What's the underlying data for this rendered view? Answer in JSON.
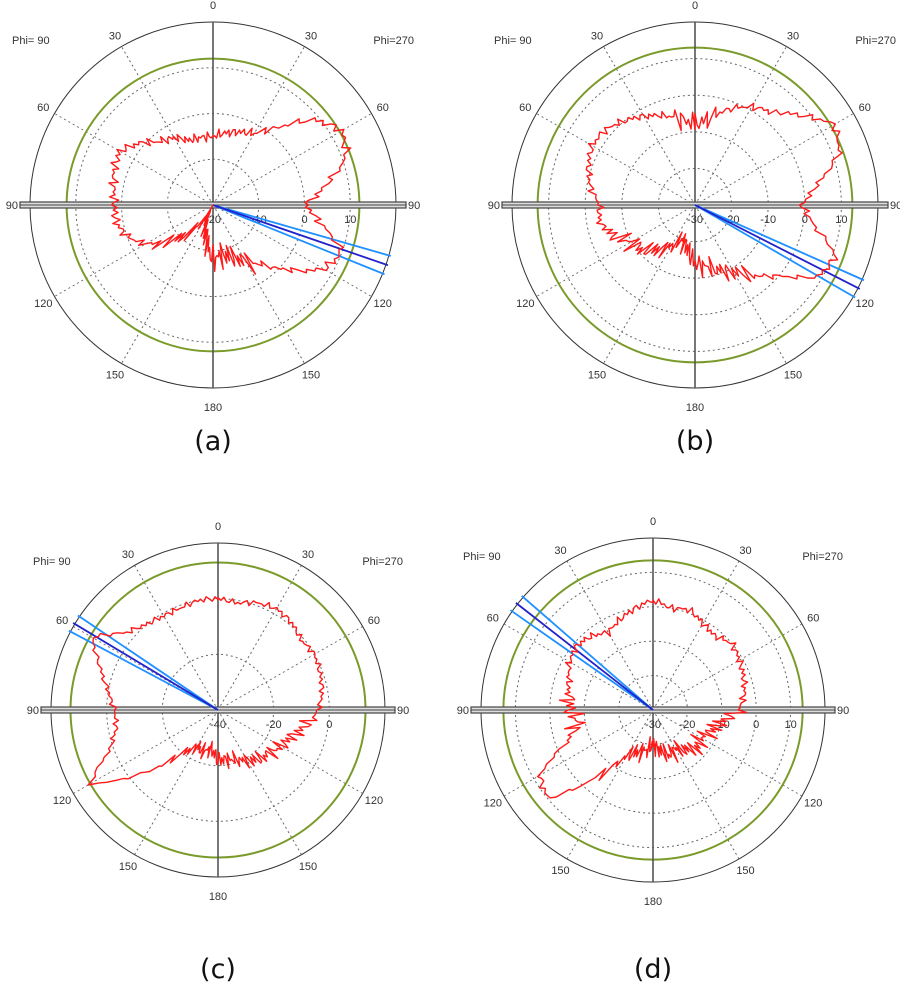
{
  "chart_data": [
    {
      "type": "polar",
      "caption": "(a)",
      "phi_left_label": "Phi= 90",
      "phi_right_label": "Phi=270",
      "theta_labels": [
        "0",
        "30",
        "60",
        "90",
        "120",
        "150",
        "180",
        "150",
        "120",
        "90",
        "60",
        "30"
      ],
      "radial_min": -20,
      "radial_max": 20,
      "radial_step": 10,
      "radial_tick_labels": [
        "-20",
        "-10",
        "0",
        "10"
      ],
      "green_circle_level": 12,
      "beam_direction_deg": 109,
      "beam_halfwidth_deg": 3,
      "angles_deg": [
        0,
        10,
        20,
        30,
        40,
        50,
        60,
        70,
        80,
        90,
        100,
        110,
        120,
        130,
        140,
        150,
        160,
        170,
        180,
        190,
        200,
        210,
        220,
        230,
        240,
        250,
        260,
        270,
        280,
        290,
        300,
        310,
        320,
        330,
        340,
        350
      ],
      "gain_db": [
        -5,
        -4,
        -3,
        -2,
        2,
        9,
        12.5,
        11,
        5,
        0,
        4,
        10,
        8,
        2,
        -3,
        -6,
        -8,
        -9,
        -8,
        -12,
        -15,
        -18,
        -12,
        -8,
        -3,
        0,
        1.5,
        1.5,
        2,
        3,
        3.5,
        1,
        -2,
        -3,
        -5,
        -5
      ]
    },
    {
      "type": "polar",
      "caption": "(b)",
      "phi_left_label": "Phi= 90",
      "phi_right_label": "Phi=270",
      "theta_labels": [
        "0",
        "30",
        "60",
        "90",
        "120",
        "150",
        "180",
        "150",
        "120",
        "90",
        "60",
        "30"
      ],
      "radial_min": -30,
      "radial_max": 20,
      "radial_step": 10,
      "radial_tick_labels": [
        "-30",
        "-20",
        "-10",
        "0",
        "10"
      ],
      "green_circle_level": 13,
      "beam_direction_deg": 117,
      "beam_halfwidth_deg": 3,
      "angles_deg": [
        0,
        10,
        20,
        30,
        40,
        50,
        60,
        70,
        80,
        90,
        100,
        110,
        120,
        130,
        140,
        150,
        160,
        170,
        180,
        190,
        200,
        210,
        220,
        230,
        240,
        250,
        260,
        270,
        280,
        290,
        300,
        310,
        320,
        330,
        340,
        350
      ],
      "gain_db": [
        -8,
        -6,
        -2,
        1,
        3,
        8,
        14,
        12,
        4,
        -1,
        3,
        11,
        9,
        0,
        -5,
        -9,
        -11,
        -13,
        -14,
        -18,
        -20,
        -17,
        -14,
        -11,
        -10,
        -6,
        -3.5,
        -4,
        -1,
        1,
        2.5,
        2,
        0,
        -2,
        -4,
        -6
      ]
    },
    {
      "type": "polar",
      "caption": "(c)",
      "phi_left_label": "Phi= 90",
      "phi_right_label": "Phi=270",
      "theta_labels": [
        "0",
        "30",
        "60",
        "90",
        "120",
        "150",
        "180",
        "150",
        "120",
        "90",
        "60",
        "30"
      ],
      "radial_min": -40,
      "radial_max": 20,
      "radial_step": 20,
      "radial_tick_labels": [
        "-40",
        "-20",
        "0"
      ],
      "green_circle_level": 13,
      "beam_direction_deg": 301,
      "beam_halfwidth_deg": 3,
      "angles_deg": [
        0,
        10,
        20,
        30,
        40,
        50,
        60,
        70,
        80,
        90,
        100,
        110,
        120,
        130,
        140,
        150,
        160,
        170,
        180,
        190,
        200,
        210,
        220,
        230,
        240,
        250,
        260,
        270,
        280,
        290,
        300,
        310,
        320,
        330,
        340,
        350
      ],
      "gain_db": [
        0,
        -1,
        1,
        2,
        1,
        -1,
        0,
        -1,
        -2,
        -4,
        -8,
        -12,
        -14,
        -16,
        -17,
        -19,
        -21,
        -22,
        -22,
        -26,
        -24,
        -25,
        -20,
        -5,
        13,
        1,
        -3,
        -3,
        0,
        5,
        12,
        3,
        0,
        -1,
        -1,
        0
      ]
    },
    {
      "type": "polar",
      "caption": "(d)",
      "phi_left_label": "Phi= 90",
      "phi_right_label": "Phi=270",
      "theta_labels": [
        "0",
        "30",
        "60",
        "90",
        "120",
        "150",
        "180",
        "150",
        "120",
        "90",
        "60",
        "30"
      ],
      "radial_min": -30,
      "radial_max": 20,
      "radial_step": 10,
      "radial_tick_labels": [
        "-30",
        "-20",
        "-10",
        "0",
        "10"
      ],
      "green_circle_level": 13.5,
      "beam_direction_deg": 308,
      "beam_halfwidth_deg": 3,
      "angles_deg": [
        0,
        10,
        20,
        30,
        40,
        50,
        60,
        70,
        80,
        90,
        100,
        110,
        120,
        130,
        140,
        150,
        160,
        170,
        180,
        190,
        200,
        210,
        220,
        230,
        240,
        250,
        260,
        270,
        280,
        290,
        300,
        310,
        320,
        330,
        340,
        350
      ],
      "gain_db": [
        2,
        0,
        1,
        -1,
        -2,
        0,
        -1,
        -2,
        -3,
        -5,
        -10,
        -12,
        -14,
        -13,
        -15,
        -17,
        -16,
        -18,
        -20,
        -18,
        -17,
        -15,
        -5,
        10,
        8,
        -4,
        -8,
        -6,
        -5,
        -4,
        -2,
        -1,
        -2,
        -4,
        -2,
        0
      ]
    }
  ],
  "colors": {
    "pattern": "#ff1a1a",
    "green": "#7a9a2a",
    "beam": "#2222cc",
    "beam_edge": "#1e90ff",
    "axis": "#555555",
    "grid": "#666666"
  }
}
